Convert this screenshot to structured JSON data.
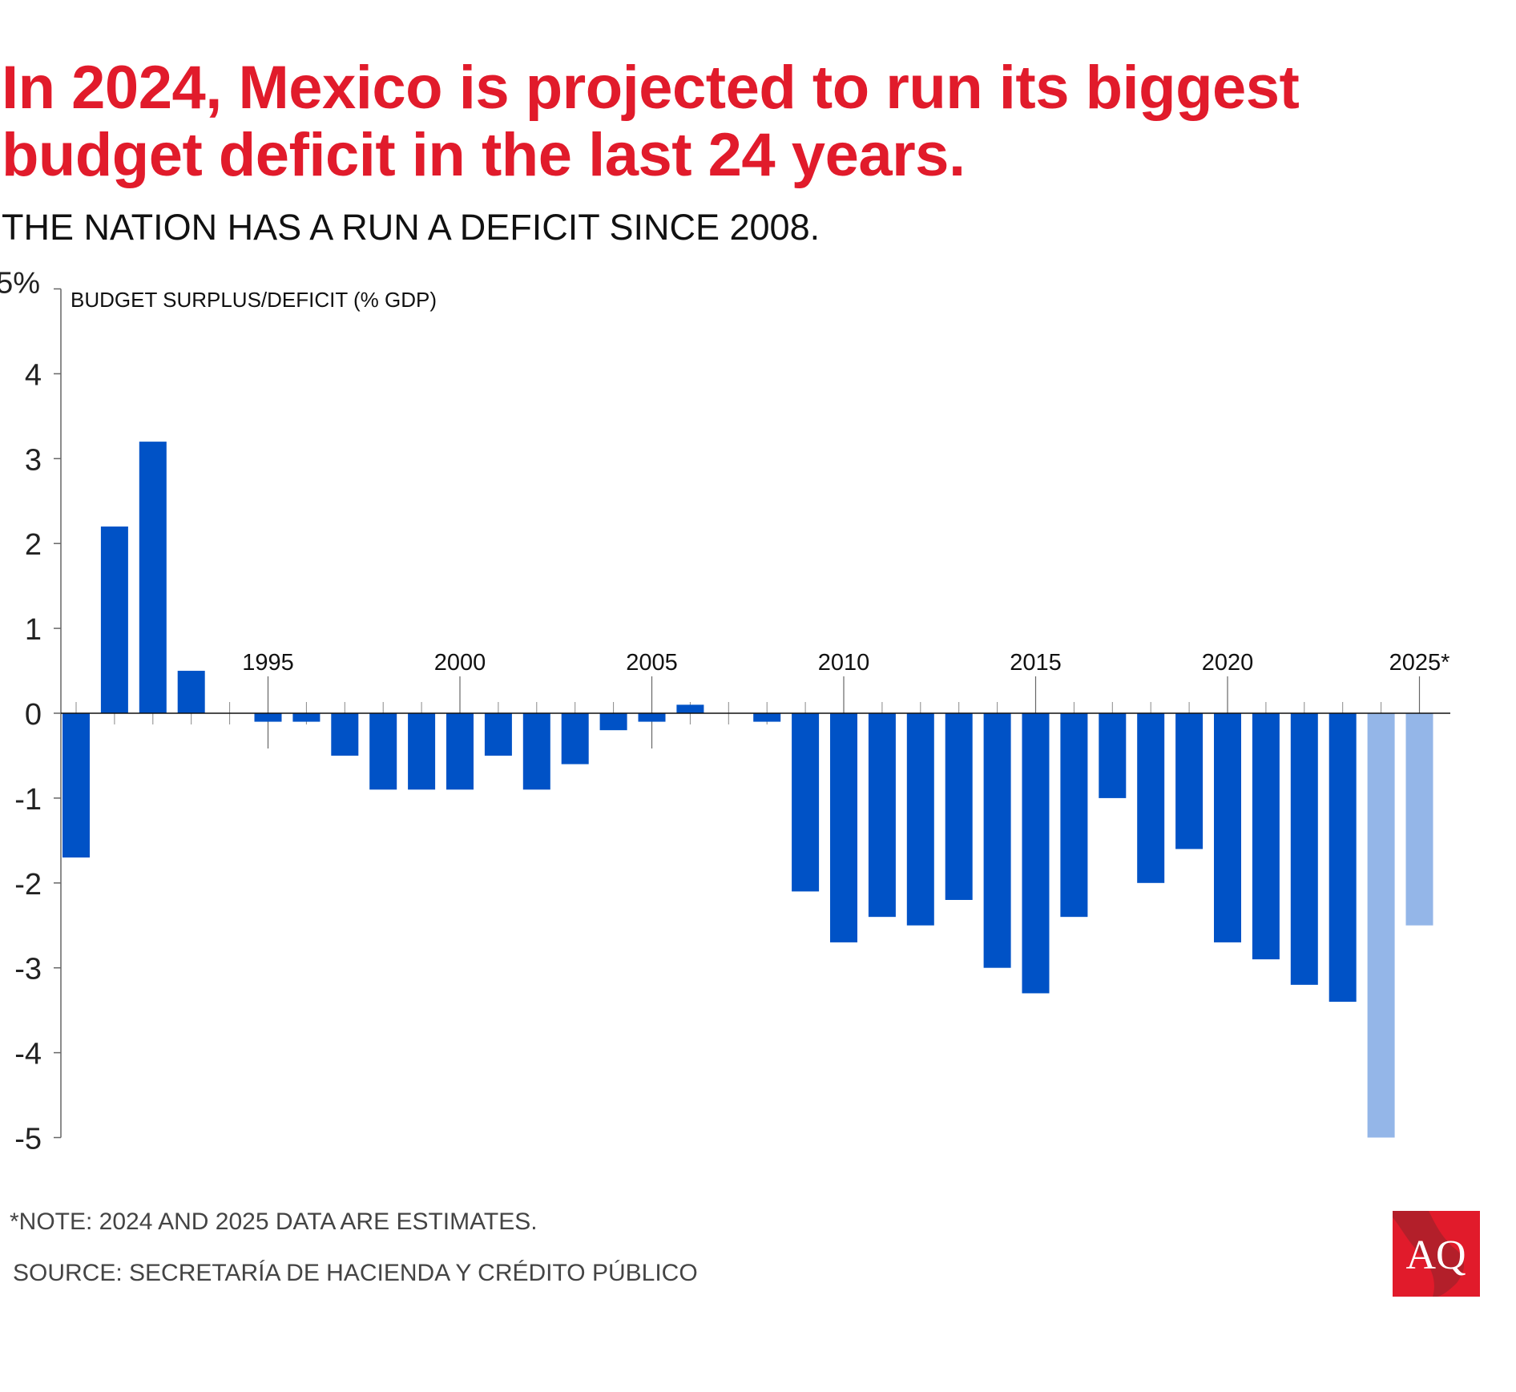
{
  "title": "In 2024, Mexico is projected to run its biggest budget deficit in the last 24 years.",
  "subtitle": "THE NATION HAS A RUN A DEFICIT SINCE 2008.",
  "note": "*NOTE: 2024 AND 2025 DATA ARE ESTIMATES.",
  "source": "SOURCE: SECRETARÍA DE HACIENDA Y CRÉDITO PÚBLICO",
  "logo_text": "AQ",
  "chart_data": {
    "type": "bar",
    "ylabel": "BUDGET SURPLUS/DEFICIT (% GDP)",
    "ylim": [
      -5,
      5
    ],
    "yticks": [
      "5%",
      "4",
      "3",
      "2",
      "1",
      "0",
      "-1",
      "-2",
      "-3",
      "-4",
      "-5"
    ],
    "ytick_values": [
      5,
      4,
      3,
      2,
      1,
      0,
      -1,
      -2,
      -3,
      -4,
      -5
    ],
    "xtick_labels": [
      "1995",
      "2000",
      "2005",
      "2010",
      "2015",
      "2020",
      "2025*"
    ],
    "xtick_years": [
      1995,
      2000,
      2005,
      2010,
      2015,
      2020,
      2025
    ],
    "grid": false,
    "categories": [
      1990,
      1991,
      1992,
      1993,
      1994,
      1995,
      1996,
      1997,
      1998,
      1999,
      2000,
      2001,
      2002,
      2003,
      2004,
      2005,
      2006,
      2007,
      2008,
      2009,
      2010,
      2011,
      2012,
      2013,
      2014,
      2015,
      2016,
      2017,
      2018,
      2019,
      2020,
      2021,
      2022,
      2023,
      2024,
      2025
    ],
    "values": [
      -1.7,
      2.2,
      3.2,
      0.5,
      0.0,
      -0.1,
      -0.1,
      -0.5,
      -0.9,
      -0.9,
      -0.9,
      -0.5,
      -0.9,
      -0.6,
      -0.2,
      -0.1,
      0.1,
      0.0,
      -0.1,
      -2.1,
      -2.7,
      -2.4,
      -2.5,
      -2.2,
      -3.0,
      -3.3,
      -2.4,
      -1.0,
      -2.0,
      -1.6,
      -2.7,
      -2.9,
      -3.2,
      -3.4,
      -5.0,
      -2.5
    ],
    "estimate_years": [
      2024,
      2025
    ],
    "colors": {
      "actual": "#0052c6",
      "estimate": "#94b6e8",
      "title": "#e11b2b"
    }
  }
}
